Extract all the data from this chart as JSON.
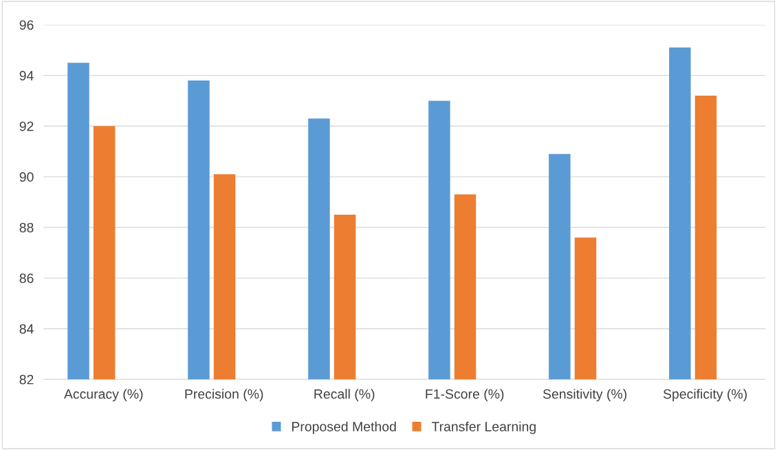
{
  "chart_data": {
    "type": "bar",
    "categories": [
      "Accuracy (%)",
      "Precision (%)",
      "Recall (%)",
      "F1-Score (%)",
      "Sensitivity (%)",
      "Specificity (%)"
    ],
    "series": [
      {
        "name": "Proposed Method",
        "color": "#5b9bd5",
        "values": [
          94.5,
          93.8,
          92.3,
          93.0,
          90.9,
          95.1
        ]
      },
      {
        "name": "Transfer Learning",
        "color": "#ed7d31",
        "values": [
          92.0,
          90.1,
          88.5,
          89.3,
          87.6,
          93.2
        ]
      }
    ],
    "ylim": [
      82,
      96
    ],
    "yticks": [
      82,
      84,
      86,
      88,
      90,
      92,
      94,
      96
    ],
    "grid": "y",
    "legend": "bottom"
  }
}
